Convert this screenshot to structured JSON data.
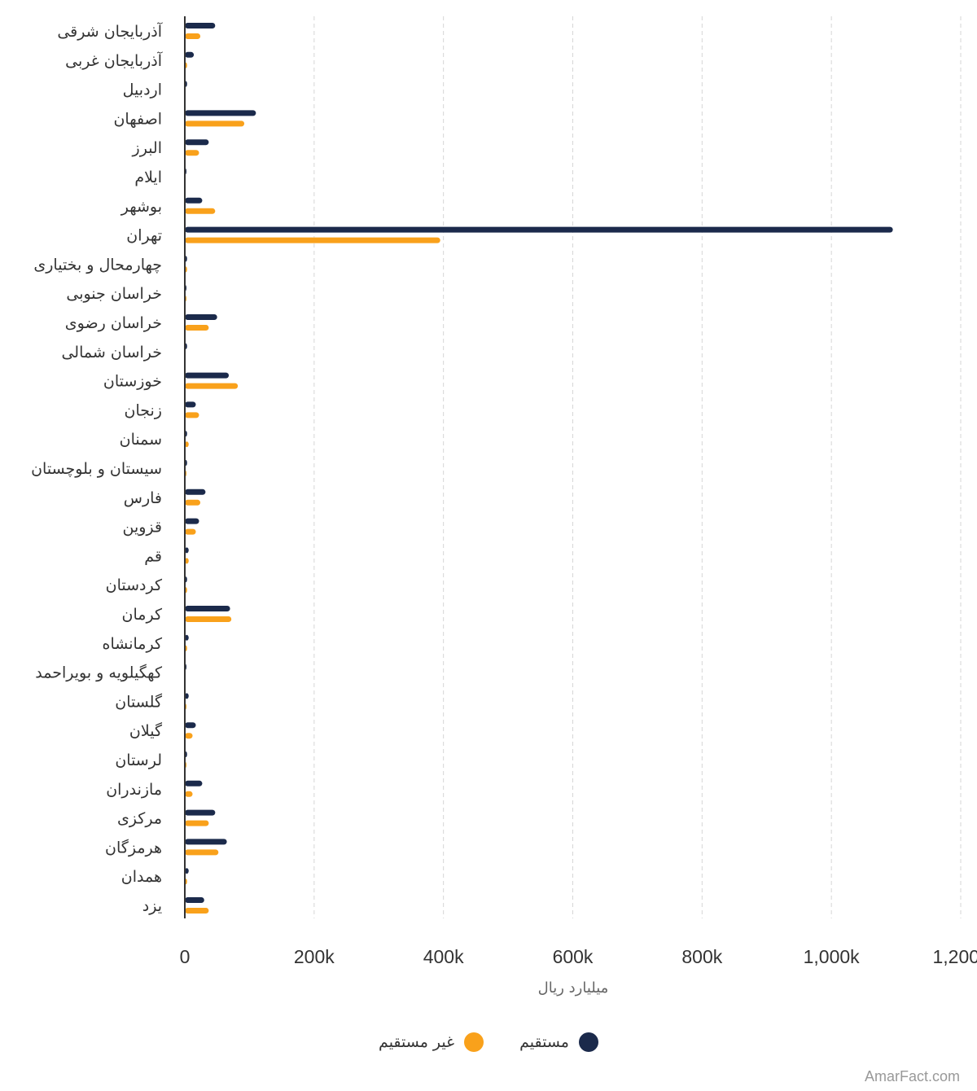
{
  "chart_data": {
    "type": "bar",
    "orientation": "horizontal",
    "xlabel": "میلیارد ریال",
    "xlim": [
      0,
      1200000
    ],
    "xticks": [
      0,
      200000,
      400000,
      600000,
      800000,
      1000000,
      1200000
    ],
    "xtick_labels": [
      "0",
      "200k",
      "400k",
      "600k",
      "800k",
      "1,000k",
      "1,200k"
    ],
    "grid": "vertical dashed",
    "legend_position": "bottom",
    "categories": [
      "آذربایجان شرقی",
      "آذربایجان غربی",
      "اردبیل",
      "اصفهان",
      "البرز",
      "ایلام",
      "بوشهر",
      "تهران",
      "چهارمحال و بختیاری",
      "خراسان جنوبی",
      "خراسان رضوی",
      "خراسان شمالی",
      "خوزستان",
      "زنجان",
      "سمنان",
      "سیستان و بلوچستان",
      "فارس",
      "قزوین",
      "قم",
      "کردستان",
      "کرمان",
      "کرمانشاه",
      "کهگیلویه و بویراحمد",
      "گلستان",
      "گیلان",
      "لرستان",
      "مازندران",
      "مرکزی",
      "هرمزگان",
      "همدان",
      "یزد"
    ],
    "series": [
      {
        "name": "مستقیم",
        "color": "#1b2a4b",
        "values": [
          47000,
          14000,
          3500,
          110000,
          37000,
          1500,
          27000,
          1095000,
          3500,
          1500,
          50000,
          3500,
          68000,
          17000,
          3500,
          3500,
          32000,
          22000,
          6000,
          3500,
          70000,
          6000,
          1500,
          6000,
          17000,
          3500,
          27000,
          47000,
          65000,
          6000,
          30000
        ]
      },
      {
        "name": "غیر مستقیم",
        "color": "#f9a11b",
        "values": [
          24000,
          3500,
          0,
          92000,
          22000,
          0,
          47000,
          395000,
          3500,
          1500,
          37000,
          0,
          82000,
          22000,
          6000,
          1500,
          24000,
          17000,
          6000,
          3500,
          72000,
          3500,
          0,
          1500,
          12000,
          1500,
          12000,
          37000,
          52000,
          3500,
          37000
        ]
      }
    ]
  },
  "credit": "AmarFact.com"
}
